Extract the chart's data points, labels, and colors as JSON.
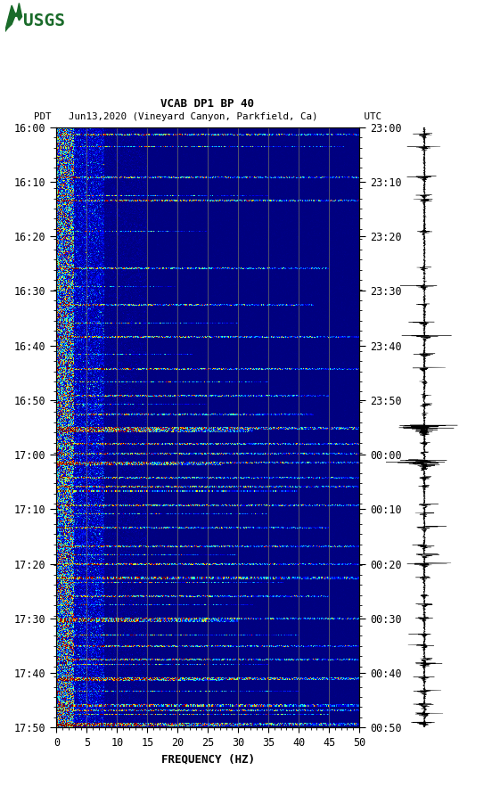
{
  "title_line1": "VCAB DP1 BP 40",
  "title_line2": "PDT   Jun13,2020 (Vineyard Canyon, Parkfield, Ca)        UTC",
  "xlabel": "FREQUENCY (HZ)",
  "left_yticks": [
    "16:00",
    "16:10",
    "16:20",
    "16:30",
    "16:40",
    "16:50",
    "17:00",
    "17:10",
    "17:20",
    "17:30",
    "17:40",
    "17:50"
  ],
  "right_yticks": [
    "23:00",
    "23:10",
    "23:20",
    "23:30",
    "23:40",
    "23:50",
    "00:00",
    "00:10",
    "00:20",
    "00:30",
    "00:40",
    "00:50"
  ],
  "freq_min": 0,
  "freq_max": 50,
  "freq_ticks": [
    0,
    5,
    10,
    15,
    20,
    25,
    30,
    35,
    40,
    45,
    50
  ],
  "n_time_steps": 660,
  "n_freq_bins": 500,
  "background_color": "#ffffff",
  "vertical_line_color": "#808060",
  "vertical_lines_freq": [
    5,
    10,
    15,
    20,
    25,
    30,
    35,
    40,
    45
  ],
  "colormap": "jet",
  "usgs_green": "#1a6b2a",
  "tick_label_fontsize": 8.5,
  "axis_label_fontsize": 9
}
